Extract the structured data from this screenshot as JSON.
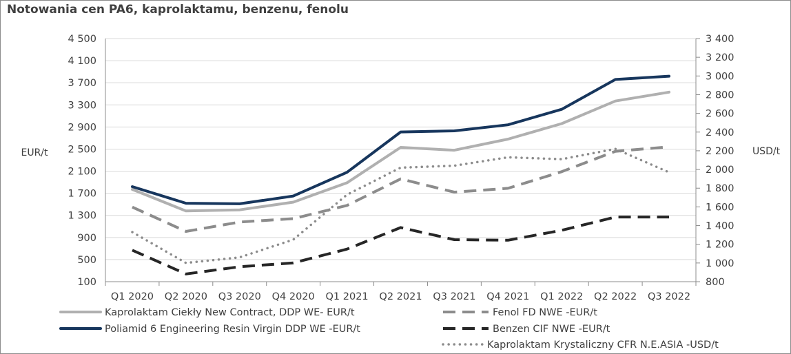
{
  "title": "Notowania cen PA6, kaprolaktamu, benzenu, fenolu",
  "chart_data": {
    "type": "line",
    "title": "Notowania cen PA6, kaprolaktamu, benzenu, fenolu",
    "categories": [
      "Q1 2020",
      "Q2 2020",
      "Q3 2020",
      "Q4 2020",
      "Q1 2021",
      "Q2 2021",
      "Q3 2021",
      "Q4 2021",
      "Q1 2022",
      "Q2 2022",
      "Q3 2022"
    ],
    "ylabel": "EUR/t",
    "y2label": "USD/t",
    "ylim": [
      100,
      4500
    ],
    "y2lim": [
      800,
      3400
    ],
    "yticks": [
      "100",
      "500",
      "900",
      "1 300",
      "1 700",
      "2 100",
      "2 500",
      "2 900",
      "3 300",
      "3 700",
      "4 100",
      "4 500"
    ],
    "y2ticks": [
      "800",
      "1 000",
      "1 200",
      "1 400",
      "1 600",
      "1 800",
      "2 000",
      "2 200",
      "2 400",
      "2 600",
      "2 800",
      "3 000",
      "3 200",
      "3 400"
    ],
    "grid": "horizontal",
    "legend_position": "bottom",
    "series": [
      {
        "name": "Kaprolaktam Ciekły New Contract, DDP WE- EUR/t",
        "axis": "left",
        "style": "solid",
        "color": "#b0b0b0",
        "values": [
          1770,
          1380,
          1400,
          1540,
          1890,
          2530,
          2480,
          2680,
          2960,
          3370,
          3530
        ]
      },
      {
        "name": "Poliamid 6 Engineering Resin Virgin DDP WE -EUR/t",
        "axis": "left",
        "style": "solid",
        "color": "#17365d",
        "values": [
          1820,
          1520,
          1510,
          1650,
          2080,
          2810,
          2830,
          2940,
          3220,
          3760,
          3820
        ]
      },
      {
        "name": "Fenol FD NWE -EUR/t",
        "axis": "left",
        "style": "dashed",
        "color": "#8c8c8c",
        "values": [
          1450,
          1010,
          1180,
          1240,
          1480,
          1960,
          1720,
          1790,
          2090,
          2460,
          2540
        ]
      },
      {
        "name": "Benzen CIF NWE -EUR/t",
        "axis": "left",
        "style": "dashed",
        "color": "#262626",
        "values": [
          670,
          240,
          370,
          440,
          690,
          1080,
          860,
          850,
          1030,
          1270,
          1270
        ]
      },
      {
        "name": "Kaprolaktam Krystaliczny CFR N.E.ASIA -USD/t",
        "axis": "right",
        "style": "dotted",
        "color": "#8c8c8c",
        "values": [
          1330,
          1000,
          1060,
          1250,
          1730,
          2020,
          2040,
          2130,
          2110,
          2220,
          1970
        ]
      }
    ]
  }
}
